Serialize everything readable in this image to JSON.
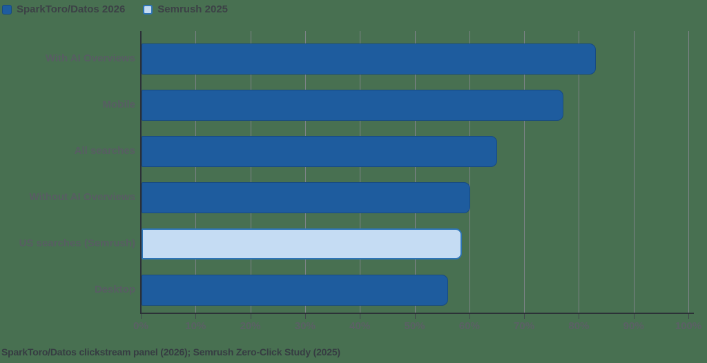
{
  "legend": {
    "items": [
      {
        "label": "SparkToro/Datos 2026",
        "swatch": "dark-blue"
      },
      {
        "label": "Semrush 2025",
        "swatch": "light-blue"
      }
    ]
  },
  "footer": {
    "text": "SparkToro/Datos clickstream panel (2026); Semrush Zero-Click Study (2025)"
  },
  "chart_data": {
    "type": "bar",
    "orientation": "horizontal",
    "title": "",
    "categories": [
      "With AI Overviews",
      "Mobile",
      "All searches",
      "Without AI Overviews",
      "US searches (Semrush)",
      "Desktop"
    ],
    "values": [
      83,
      77,
      65,
      60,
      58.5,
      56
    ],
    "series_by_bar": [
      "SparkToro/Datos 2026",
      "SparkToro/Datos 2026",
      "SparkToro/Datos 2026",
      "SparkToro/Datos 2026",
      "Semrush 2025",
      "SparkToro/Datos 2026"
    ],
    "x_ticks": [
      "0%",
      "10%",
      "20%",
      "30%",
      "40%",
      "50%",
      "60%",
      "70%",
      "80%",
      "90%",
      "100%"
    ],
    "xlim": [
      0,
      100
    ],
    "grid": true,
    "legend_position": "top-left",
    "colors": {
      "background": "#487051",
      "series1_fill": "#1e5c9e",
      "series1_border": "#174a82",
      "series2_fill": "#c5dcf3",
      "series2_border": "#2e74b5",
      "gridline": "#7e8388",
      "axis": "#2c3137",
      "tick_label": "#5b6065",
      "category_label": "#585d63",
      "legend_text": "#3c4146",
      "footer_text": "#363c42"
    }
  }
}
